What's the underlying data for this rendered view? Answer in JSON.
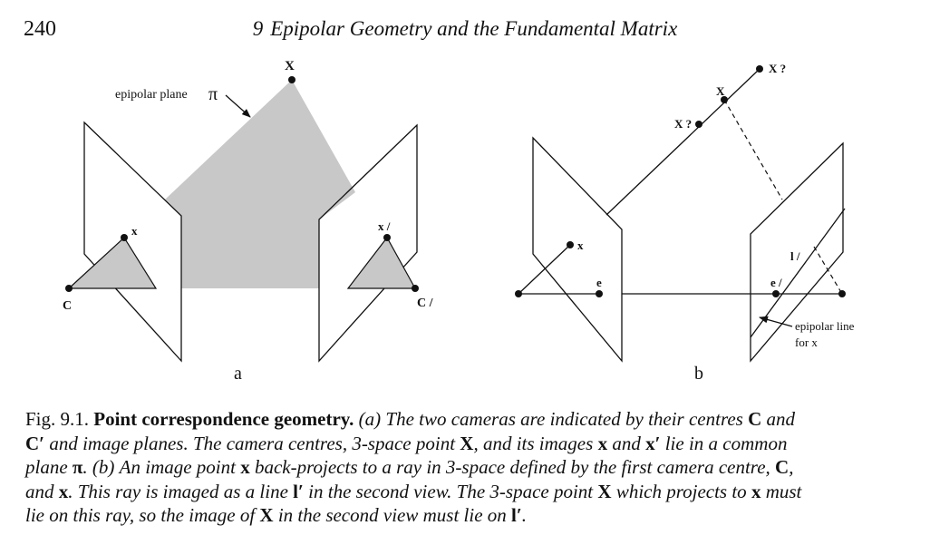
{
  "header": {
    "page_number": "240",
    "chapter_number": "9",
    "chapter_title": "Epipolar Geometry and the Fundamental Matrix"
  },
  "figure": {
    "panel_a": {
      "panel_label": "a",
      "epipolar_plane_label": "epipolar plane",
      "pi_symbol": "π",
      "point_X": "X",
      "point_x": "x",
      "point_x_prime": "x /",
      "camera_C": "C",
      "camera_C_prime": "C /"
    },
    "panel_b": {
      "panel_label": "b",
      "point_X": "X",
      "point_X_q1": "X ?",
      "point_X_q2": "X ?",
      "point_x": "x",
      "epipole_e": "e",
      "epipole_e_prime": "e /",
      "line_l_prime": "l /",
      "epipolar_line_label_1": "epipolar line",
      "epipolar_line_label_2": "for x"
    },
    "colors": {
      "plane_fill": "#c8c8c8",
      "stroke": "#111111"
    }
  },
  "caption": {
    "fig_number": "Fig. 9.1.",
    "title": "Point correspondence geometry.",
    "line1_a": "(a) The two cameras are indicated by their centres",
    "sym_C": "C",
    "line1_b": "and",
    "sym_C_prime": "C′",
    "line2_a": "and image planes. The camera centres, 3-space point",
    "sym_X": "X",
    "line2_b": ", and its images",
    "sym_x": "x",
    "line2_c": "and",
    "sym_x_prime": "x′",
    "line2_d": "lie in a common",
    "line3_a": "plane",
    "sym_pi": "π",
    "line3_b": ". (b) An image point",
    "line3_c": "back-projects to a ray in 3-space defined by the first camera centre,",
    "line3_d": ",",
    "line4_a": "and",
    "line4_b": ". This ray is imaged as a line",
    "sym_l_prime": "l′",
    "line4_c": "in the second view. The 3-space point",
    "line4_d": "which projects to",
    "line4_e": "must",
    "line5_a": "lie on this ray, so the image of",
    "line5_b": "in the second view must lie on",
    "line5_c": "."
  }
}
